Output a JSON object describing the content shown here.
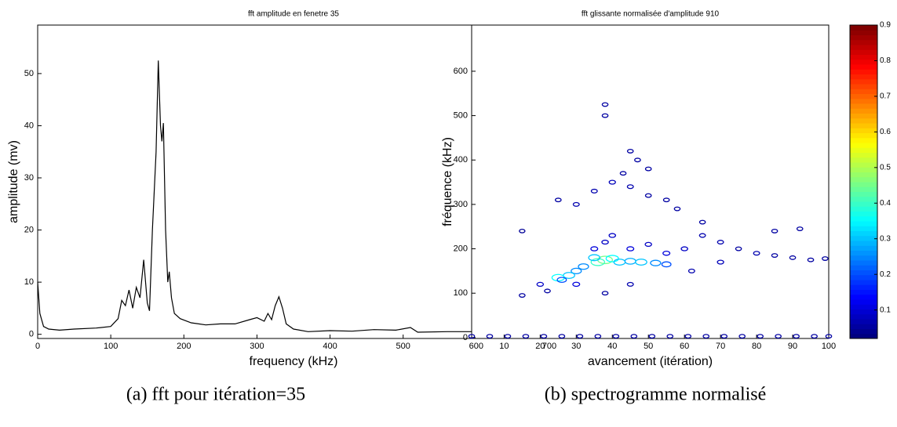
{
  "chart_data": [
    {
      "type": "line",
      "title": "fft amplitude en fenetre 35",
      "xlabel": "frequency (kHz)",
      "ylabel": "amplitude (mv)",
      "caption": "(a) fft pour itération=35",
      "color": "#000000",
      "x": [
        0,
        3,
        8,
        15,
        30,
        50,
        80,
        100,
        110,
        115,
        120,
        125,
        130,
        135,
        140,
        145,
        150,
        153,
        157,
        162,
        165,
        168,
        170,
        172,
        175,
        178,
        180,
        183,
        187,
        195,
        210,
        230,
        250,
        270,
        290,
        300,
        310,
        315,
        320,
        325,
        330,
        335,
        340,
        350,
        370,
        400,
        430,
        460,
        490,
        510,
        520,
        560,
        600,
        650,
        700
      ],
      "y": [
        10,
        4,
        1.5,
        1,
        0.8,
        1,
        1.2,
        1.5,
        3,
        6.5,
        5.5,
        8.5,
        5,
        9,
        7,
        14.3,
        6,
        4.5,
        20,
        35,
        52.5,
        40,
        37,
        40.5,
        20,
        10,
        12,
        7,
        4,
        3,
        2.2,
        1.8,
        2,
        2,
        2.8,
        3.2,
        2.5,
        4,
        2.8,
        5.5,
        7.2,
        5,
        2,
        1,
        0.5,
        0.7,
        0.6,
        0.9,
        0.8,
        1.3,
        0.4,
        0.5,
        0.5,
        0.4,
        0.4
      ],
      "xlim": [
        0,
        700
      ],
      "ylim": [
        -0.8,
        59.3
      ],
      "xticks": [
        0,
        100,
        200,
        300,
        400,
        500,
        600,
        700
      ],
      "yticks": [
        0,
        10,
        20,
        30,
        40,
        50
      ]
    },
    {
      "type": "contour",
      "title": "fft glissante normalisée d'amplitude 910",
      "xlabel": "avancement (itération)",
      "ylabel": "fréquence (kHz)",
      "caption": "(b) spectrogramme normalisé",
      "colormap": "jet",
      "x": [
        38,
        36,
        40,
        35,
        42,
        45,
        48,
        52,
        30,
        28,
        25,
        32,
        55,
        26,
        20,
        15,
        22,
        30,
        35,
        38,
        40,
        45,
        50,
        55,
        60,
        65,
        70,
        75,
        80,
        85,
        90,
        95,
        99,
        70,
        62,
        45,
        38,
        30,
        25,
        35,
        40,
        45,
        50,
        55,
        43,
        50,
        38,
        38,
        45,
        47,
        58,
        65,
        85,
        92,
        15,
        1,
        6,
        11,
        16,
        21,
        26,
        31,
        36,
        41,
        46,
        51,
        56,
        61,
        66,
        71,
        76,
        81,
        86,
        91,
        96,
        100
      ],
      "y": [
        175,
        170,
        178,
        180,
        170,
        172,
        170,
        168,
        150,
        140,
        135,
        160,
        165,
        130,
        120,
        95,
        105,
        120,
        200,
        215,
        230,
        200,
        210,
        190,
        200,
        230,
        215,
        200,
        190,
        185,
        180,
        175,
        178,
        170,
        150,
        120,
        100,
        300,
        310,
        330,
        350,
        340,
        320,
        310,
        370,
        380,
        500,
        525,
        420,
        400,
        290,
        260,
        240,
        245,
        240,
        3,
        3,
        3,
        3,
        3,
        3,
        3,
        3,
        3,
        3,
        3,
        3,
        3,
        3,
        3,
        3,
        3,
        3,
        3,
        3,
        3
      ],
      "z": [
        0.45,
        0.4,
        0.35,
        0.3,
        0.3,
        0.28,
        0.3,
        0.25,
        0.25,
        0.3,
        0.35,
        0.25,
        0.2,
        0.2,
        0.08,
        0.05,
        0.05,
        0.1,
        0.1,
        0.08,
        0.08,
        0.1,
        0.08,
        0.1,
        0.08,
        0.06,
        0.06,
        0.05,
        0.06,
        0.05,
        0.05,
        0.05,
        0.05,
        0.07,
        0.06,
        0.06,
        0.05,
        0.06,
        0.05,
        0.06,
        0.07,
        0.06,
        0.05,
        0.05,
        0.05,
        0.05,
        0.05,
        0.05,
        0.05,
        0.05,
        0.05,
        0.05,
        0.05,
        0.05,
        0.04,
        0.05,
        0.05,
        0.05,
        0.05,
        0.05,
        0.05,
        0.05,
        0.05,
        0.05,
        0.05,
        0.05,
        0.05,
        0.05,
        0.05,
        0.05,
        0.05,
        0.05,
        0.05,
        0.05,
        0.05,
        0.05
      ],
      "xlim": [
        1,
        100
      ],
      "ylim": [
        -2,
        704
      ],
      "xticks": [
        10,
        20,
        30,
        40,
        50,
        60,
        70,
        80,
        90,
        100
      ],
      "yticks": [
        0,
        100,
        200,
        300,
        400,
        500,
        600
      ],
      "clim": [
        0.02,
        0.9
      ],
      "cticks": [
        0.1,
        0.2,
        0.3,
        0.4,
        0.5,
        0.6,
        0.7,
        0.8,
        0.9
      ]
    }
  ]
}
